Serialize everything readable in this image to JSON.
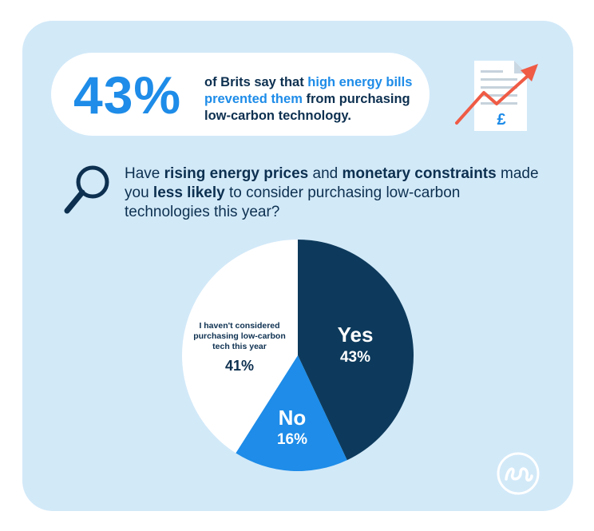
{
  "headline": {
    "percent": "43%",
    "text_1": "of Brits say that ",
    "text_highlight": "high energy bills prevented them",
    "text_2": " from purchasing low-carbon technology."
  },
  "question": {
    "p1": "Have ",
    "b1": "rising energy prices",
    "p2": " and ",
    "b2": "monetary constraints",
    "p3": " made you ",
    "b3": "less likely",
    "p4": " to consider purchasing low-carbon technologies this year?"
  },
  "icons": {
    "document": "document-with-rising-chart-icon",
    "currency_symbol": "£",
    "search": "magnifying-glass-icon",
    "logo": "brand-logo-icon"
  },
  "colors": {
    "card_bg": "#d2e9f8",
    "accent_blue": "#1e8ce8",
    "navy": "#0d3050",
    "trend_red": "#ef5b45"
  },
  "chart_data": {
    "type": "pie",
    "title": "",
    "slices": [
      {
        "label": "Yes",
        "display_value": "43%",
        "value": 43,
        "color": "#0d3a5c"
      },
      {
        "label": "No",
        "display_value": "16%",
        "value": 16,
        "color": "#1e8ce8"
      },
      {
        "label": "I haven't considered purchasing low-carbon tech this year",
        "display_value": "41%",
        "value": 41,
        "color": "#ffffff"
      }
    ]
  }
}
